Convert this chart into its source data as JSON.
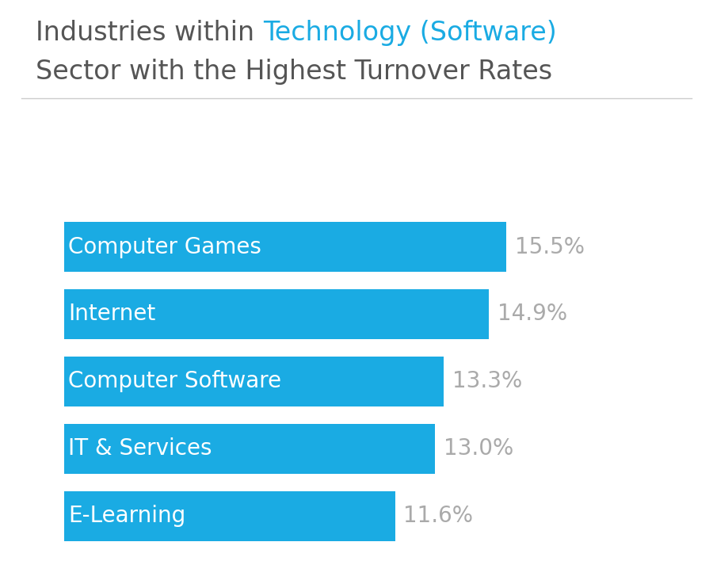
{
  "title_part1": "Industries within ",
  "title_highlight": "Technology (Software)",
  "title_line2": "Sector with the Highest Turnover Rates",
  "categories": [
    "Computer Games",
    "Internet",
    "Computer Software",
    "IT & Services",
    "E-Learning"
  ],
  "values": [
    15.5,
    14.9,
    13.3,
    13.0,
    11.6
  ],
  "labels": [
    "15.5%",
    "14.9%",
    "13.3%",
    "13.0%",
    "11.6%"
  ],
  "bar_color": "#1AABE3",
  "label_color": "#AAAAAA",
  "bar_text_color": "#FFFFFF",
  "title_color": "#555555",
  "highlight_color": "#1AABE3",
  "background_color": "#FFFFFF",
  "separator_color": "#CCCCCC",
  "bar_height": 0.75,
  "xlim": [
    0,
    19.5
  ],
  "title_fontsize": 24,
  "bar_label_fontsize": 20,
  "value_label_fontsize": 20
}
